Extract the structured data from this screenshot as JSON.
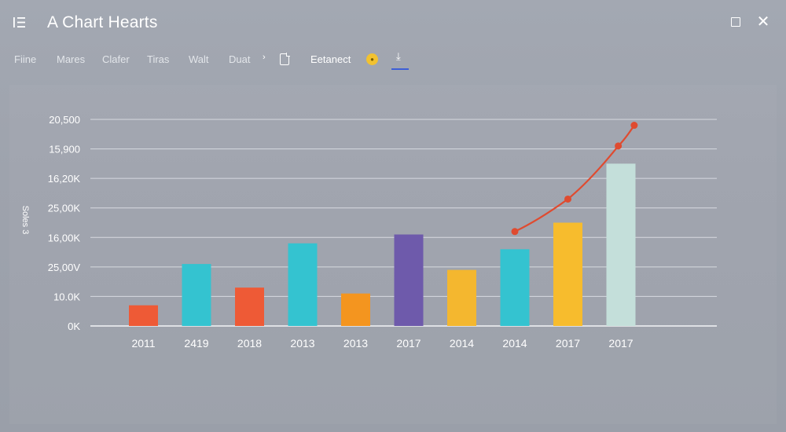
{
  "window": {
    "title": "A Chart Hearts",
    "menu_icon": "list-menu-icon",
    "maximize_icon": "maximize-icon",
    "close_icon": "close-icon",
    "close_glyph": "✕"
  },
  "toolbar": {
    "items": [
      "Fiine",
      "Mares",
      "Clafer",
      "Tiras",
      "Walt",
      "Duat"
    ],
    "chevron": "›",
    "doc_icon": "document-icon",
    "extra_label": "Eetanect",
    "status_icon": "yellow-status-icon",
    "download_icon": "download-icon"
  },
  "chart_data": {
    "type": "bar",
    "title": "",
    "ylabel": "Soles 3",
    "xlabel": "",
    "y_tick_labels": [
      "0K",
      "10.0K",
      "25,00V",
      "16,00K",
      "25,00K",
      "16,20K",
      "15,900",
      "20,500"
    ],
    "categories": [
      "2011",
      "2419",
      "2018",
      "2013",
      "2013",
      "2017",
      "2014",
      "2014",
      "2017",
      "2017"
    ],
    "values": [
      0.7,
      2.1,
      1.3,
      2.8,
      1.1,
      3.1,
      1.9,
      2.6,
      3.5,
      5.5
    ],
    "bar_colors": [
      "#ee5a36",
      "#34c3d0",
      "#ee5a36",
      "#34c3d0",
      "#f4951f",
      "#6e5aab",
      "#f4b72f",
      "#34c3d0",
      "#f7bc2d",
      "#c4dfda"
    ],
    "ylim": [
      0,
      7
    ],
    "grid": true,
    "legend": "none",
    "trend_line": {
      "color": "#df4b30",
      "points": [
        {
          "x": 7,
          "y": 3.2
        },
        {
          "x": 8,
          "y": 4.3
        },
        {
          "x": 8.95,
          "y": 6.1
        },
        {
          "x": 9.25,
          "y": 6.8
        }
      ]
    }
  }
}
